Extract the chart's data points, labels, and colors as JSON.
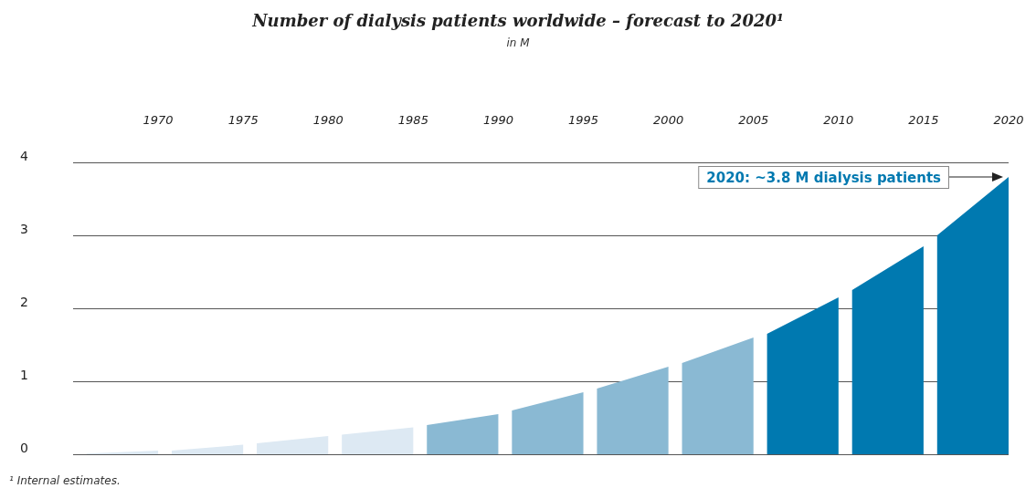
{
  "chart_data": {
    "type": "area",
    "title": "Number of dialysis patients worldwide – forecast to 2020¹",
    "subtitle": "in M",
    "xlim": [
      1965,
      2020
    ],
    "xticks": [
      1970,
      1975,
      1980,
      1985,
      1990,
      1995,
      2000,
      2005,
      2010,
      2015,
      2020
    ],
    "ylim": [
      0,
      4
    ],
    "yticks": [
      0,
      1,
      2,
      3,
      4
    ],
    "grid": "y",
    "series": [
      {
        "color": "#dde9f3",
        "x": [
          1965.8,
          1970,
          1970.4,
          1970.8,
          1975,
          1975.4,
          1975.8,
          1980,
          1980.4,
          1980.8,
          1985
        ],
        "values": [
          0.01,
          0.05,
          null,
          0.05,
          0.13,
          null,
          0.15,
          0.25,
          null,
          0.27,
          0.37
        ]
      },
      {
        "color": "#8ab9d3",
        "x": [
          1985.8,
          1990,
          1990.4,
          1990.8,
          1995,
          1995.4,
          1995.8,
          2000,
          2000.4,
          2000.8,
          2005
        ],
        "values": [
          0.4,
          0.55,
          null,
          0.6,
          0.85,
          null,
          0.9,
          1.2,
          null,
          1.25,
          1.6
        ]
      },
      {
        "color": "#0079b0",
        "x": [
          2005.8,
          2010,
          2010.4,
          2010.8,
          2015,
          2015.4,
          2015.8,
          2020
        ],
        "values": [
          1.65,
          2.15,
          null,
          2.25,
          2.85,
          null,
          3.0,
          3.8
        ]
      }
    ],
    "annotations": [
      {
        "text": "2020: ~3.8 M dialysis patients",
        "x": 2020,
        "y": 3.8
      },
      "¹ Internal estimates."
    ]
  }
}
